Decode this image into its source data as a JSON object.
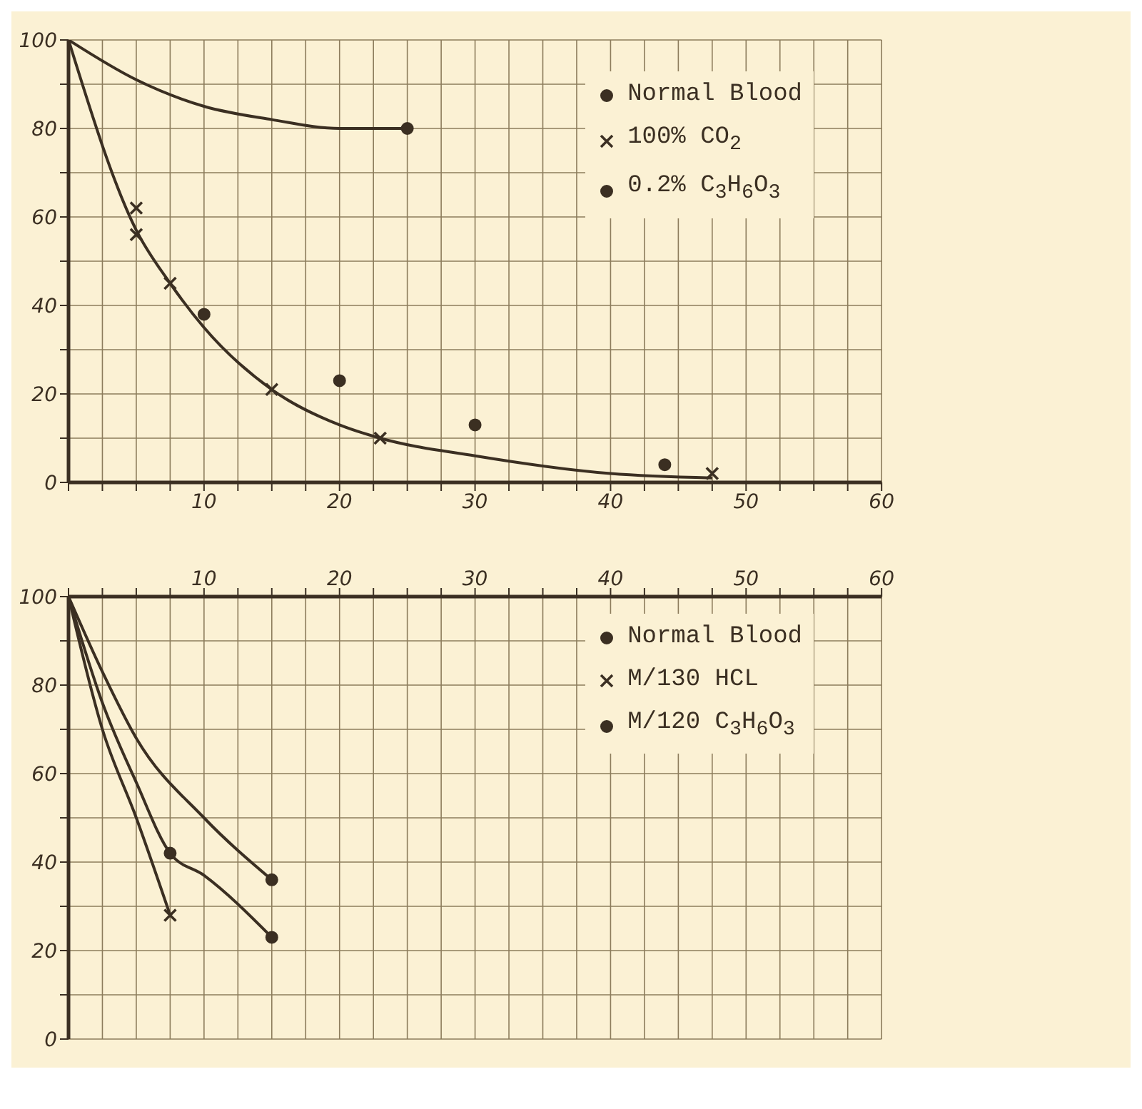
{
  "chart_data": [
    {
      "type": "line",
      "xlim": [
        0,
        60
      ],
      "ylim": [
        0,
        100
      ],
      "xticks": [
        {
          "value": 0,
          "label": null
        },
        {
          "value": 2.5,
          "label": null
        },
        {
          "value": 5,
          "label": null
        },
        {
          "value": 7.5,
          "label": null
        },
        10,
        {
          "value": 12.5,
          "label": null
        },
        {
          "value": 15,
          "label": null
        },
        {
          "value": 17.5,
          "label": null
        },
        20,
        {
          "value": 22.5,
          "label": null
        },
        {
          "value": 25,
          "label": null
        },
        {
          "value": 27.5,
          "label": null
        },
        30,
        {
          "value": 32.5,
          "label": null
        },
        {
          "value": 35,
          "label": null
        },
        {
          "value": 37.5,
          "label": null
        },
        40,
        {
          "value": 42.5,
          "label": null
        },
        {
          "value": 45,
          "label": null
        },
        {
          "value": 47.5,
          "label": null
        },
        50,
        {
          "value": 52.5,
          "label": null
        },
        {
          "value": 55,
          "label": null
        },
        {
          "value": 57.5,
          "label": null
        },
        60
      ],
      "yticks": [
        0,
        {
          "value": 10,
          "label": null
        },
        20,
        {
          "value": 30,
          "label": null
        },
        40,
        {
          "value": 50,
          "label": null
        },
        60,
        {
          "value": 70,
          "label": null
        },
        80,
        {
          "value": 90,
          "label": null
        },
        100
      ],
      "grid": true,
      "legend": "top right",
      "series": [
        {
          "type": "line",
          "x": [
            0,
            5,
            10,
            15,
            20,
            25
          ],
          "values": [
            100,
            91,
            85,
            82,
            80,
            80
          ],
          "color": "#3b2f22",
          "marker": "none"
        },
        {
          "type": "line",
          "x": [
            0,
            5,
            7.5,
            10,
            15,
            20,
            23,
            30,
            40,
            47.5
          ],
          "values": [
            100,
            57,
            45,
            35,
            21,
            13,
            10,
            6,
            2,
            1
          ],
          "color": "#3b2f22",
          "marker": "none"
        },
        {
          "type": "scatter",
          "name": "Normal Blood",
          "x": [
            25
          ],
          "values": [
            80
          ],
          "color": "#3b2f22",
          "marker": "circle"
        },
        {
          "type": "scatter",
          "name": "100% CO$_{2}$",
          "x": [
            5,
            5,
            7.5,
            15,
            23,
            47.5
          ],
          "values": [
            62,
            56,
            45,
            21,
            10,
            2
          ],
          "color": "#3b2f22",
          "marker": "cross"
        },
        {
          "type": "scatter",
          "name": "0.2% C$_{3}$H$_{6}$O$_{3}$",
          "x": [
            10,
            20,
            30,
            44
          ],
          "values": [
            38,
            23,
            13,
            4
          ],
          "color": "#3b2f22",
          "marker": "circle"
        }
      ]
    },
    {
      "type": "line",
      "xlim": [
        0,
        60
      ],
      "ylim": [
        0,
        100
      ],
      "xticks": [
        {
          "value": 0,
          "label": null
        },
        {
          "value": 2.5,
          "label": null
        },
        {
          "value": 5,
          "label": null
        },
        {
          "value": 7.5,
          "label": null
        },
        10,
        {
          "value": 12.5,
          "label": null
        },
        {
          "value": 15,
          "label": null
        },
        {
          "value": 17.5,
          "label": null
        },
        20,
        {
          "value": 22.5,
          "label": null
        },
        {
          "value": 25,
          "label": null
        },
        {
          "value": 27.5,
          "label": null
        },
        30,
        {
          "value": 32.5,
          "label": null
        },
        {
          "value": 35,
          "label": null
        },
        {
          "value": 37.5,
          "label": null
        },
        40,
        {
          "value": 42.5,
          "label": null
        },
        {
          "value": 45,
          "label": null
        },
        {
          "value": 47.5,
          "label": null
        },
        50,
        {
          "value": 52.5,
          "label": null
        },
        {
          "value": 55,
          "label": null
        },
        {
          "value": 57.5,
          "label": null
        },
        60
      ],
      "yticks": [
        0,
        {
          "value": 10,
          "label": null
        },
        20,
        {
          "value": 30,
          "label": null
        },
        40,
        {
          "value": 50,
          "label": null
        },
        60,
        {
          "value": 70,
          "label": null
        },
        80,
        {
          "value": 90,
          "label": null
        },
        100
      ],
      "grid": true,
      "legend": "top right",
      "series": [
        {
          "type": "line",
          "x": [
            0,
            2.5,
            5,
            10,
            15
          ],
          "values": [
            100,
            83,
            68,
            50,
            36
          ],
          "color": "#3b2f22",
          "marker": "none"
        },
        {
          "type": "line",
          "x": [
            0,
            2.5,
            5,
            7.5,
            10,
            15
          ],
          "values": [
            100,
            76,
            58,
            42,
            37,
            23
          ],
          "color": "#3b2f22",
          "marker": "none"
        },
        {
          "type": "line",
          "x": [
            0,
            2.5,
            5,
            7.5
          ],
          "values": [
            100,
            70,
            50,
            28
          ],
          "color": "#3b2f22",
          "marker": "none"
        },
        {
          "type": "scatter",
          "name": "Normal Blood",
          "x": [
            15
          ],
          "values": [
            36
          ],
          "color": "#3b2f22",
          "marker": "circle"
        },
        {
          "type": "scatter",
          "name": "M/130 HCL",
          "x": [
            7.5
          ],
          "values": [
            28
          ],
          "color": "#3b2f22",
          "marker": "cross"
        },
        {
          "type": "scatter",
          "name": "M/120 C$_{3}$H$_{6}$O$_{3}$",
          "x": [
            7.5,
            15
          ],
          "values": [
            42,
            23
          ],
          "color": "#3b2f22",
          "marker": "circle"
        }
      ]
    }
  ]
}
